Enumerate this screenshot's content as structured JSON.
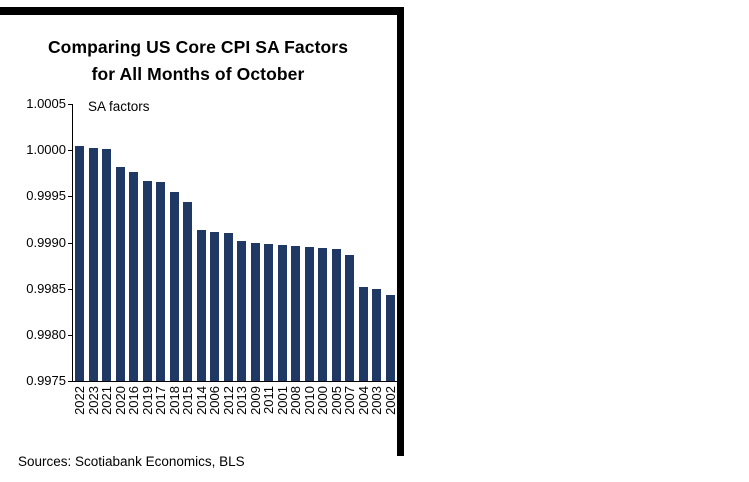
{
  "chart_data": {
    "type": "bar",
    "title": "Comparing US Core CPI SA Factors for All Months of October",
    "title_lines": [
      "Comparing US Core CPI SA Factors",
      "for All Months of October"
    ],
    "annotation": "SA factors",
    "categories": [
      "2022",
      "2023",
      "2021",
      "2020",
      "2016",
      "2019",
      "2017",
      "2018",
      "2015",
      "2014",
      "2006",
      "2012",
      "2013",
      "2009",
      "2011",
      "2001",
      "2008",
      "2010",
      "2000",
      "2005",
      "2007",
      "2004",
      "2003",
      "2002"
    ],
    "values": [
      1.00004,
      1.00002,
      1.00001,
      0.99982,
      0.99976,
      0.99967,
      0.99965,
      0.99955,
      0.99944,
      0.99913,
      0.99911,
      0.9991,
      0.99902,
      0.999,
      0.99898,
      0.99897,
      0.99896,
      0.99895,
      0.99894,
      0.99893,
      0.99887,
      0.99852,
      0.9985,
      0.99843
    ],
    "xlabel": "",
    "ylabel": "",
    "ylim": [
      0.9975,
      1.0005
    ],
    "ytick_labels": [
      "1.0005",
      "1.0000",
      "0.9995",
      "0.9990",
      "0.9985",
      "0.9980",
      "0.9975"
    ],
    "bar_color": "#1F3864",
    "grid": false,
    "legend": "none",
    "x_labels_rotated": true
  },
  "footer": {
    "sources": "Sources: Scotiabank Economics, BLS"
  }
}
